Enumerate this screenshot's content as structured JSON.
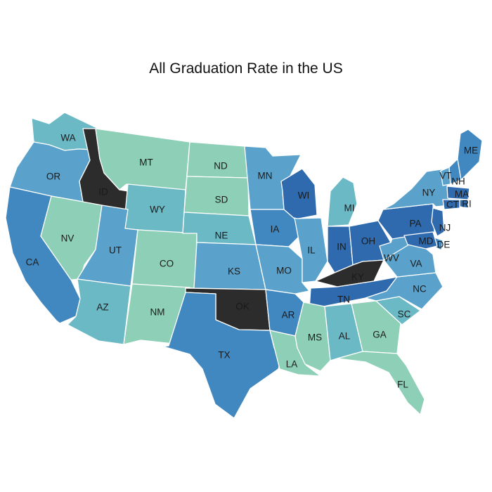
{
  "chart_data": {
    "type": "choropleth",
    "title": "All Graduation Rate in the US",
    "colors": {
      "c1": "#8ecfb8",
      "c2": "#6cb9c6",
      "c3": "#5aa2cb",
      "c4": "#4288c0",
      "c5": "#2e6aad",
      "c6": "#2c2c2c"
    },
    "states": [
      {
        "code": "WA",
        "tier": "c2"
      },
      {
        "code": "OR",
        "tier": "c3"
      },
      {
        "code": "CA",
        "tier": "c4"
      },
      {
        "code": "ID",
        "tier": "c6"
      },
      {
        "code": "NV",
        "tier": "c1"
      },
      {
        "code": "MT",
        "tier": "c1"
      },
      {
        "code": "WY",
        "tier": "c2"
      },
      {
        "code": "UT",
        "tier": "c3"
      },
      {
        "code": "AZ",
        "tier": "c2"
      },
      {
        "code": "CO",
        "tier": "c1"
      },
      {
        "code": "NM",
        "tier": "c1"
      },
      {
        "code": "ND",
        "tier": "c1"
      },
      {
        "code": "SD",
        "tier": "c1"
      },
      {
        "code": "NE",
        "tier": "c2"
      },
      {
        "code": "KS",
        "tier": "c3"
      },
      {
        "code": "OK",
        "tier": "c6"
      },
      {
        "code": "TX",
        "tier": "c4"
      },
      {
        "code": "MN",
        "tier": "c3"
      },
      {
        "code": "IA",
        "tier": "c4"
      },
      {
        "code": "MO",
        "tier": "c3"
      },
      {
        "code": "AR",
        "tier": "c4"
      },
      {
        "code": "LA",
        "tier": "c1"
      },
      {
        "code": "WI",
        "tier": "c5"
      },
      {
        "code": "IL",
        "tier": "c3"
      },
      {
        "code": "MI",
        "tier": "c2"
      },
      {
        "code": "IN",
        "tier": "c5"
      },
      {
        "code": "OH",
        "tier": "c5"
      },
      {
        "code": "KY",
        "tier": "c6"
      },
      {
        "code": "TN",
        "tier": "c5"
      },
      {
        "code": "MS",
        "tier": "c1"
      },
      {
        "code": "AL",
        "tier": "c2"
      },
      {
        "code": "GA",
        "tier": "c1"
      },
      {
        "code": "FL",
        "tier": "c1"
      },
      {
        "code": "SC",
        "tier": "c2"
      },
      {
        "code": "NC",
        "tier": "c3"
      },
      {
        "code": "VA",
        "tier": "c3"
      },
      {
        "code": "WV",
        "tier": "c3"
      },
      {
        "code": "PA",
        "tier": "c5"
      },
      {
        "code": "NY",
        "tier": "c3"
      },
      {
        "code": "VT",
        "tier": "c3"
      },
      {
        "code": "NH",
        "tier": "c4"
      },
      {
        "code": "ME",
        "tier": "c4"
      },
      {
        "code": "MA",
        "tier": "c5"
      },
      {
        "code": "RI",
        "tier": "c5"
      },
      {
        "code": "CT",
        "tier": "c5"
      },
      {
        "code": "NJ",
        "tier": "c5"
      },
      {
        "code": "DE",
        "tier": "c4"
      },
      {
        "code": "MD",
        "tier": "c5"
      }
    ]
  }
}
